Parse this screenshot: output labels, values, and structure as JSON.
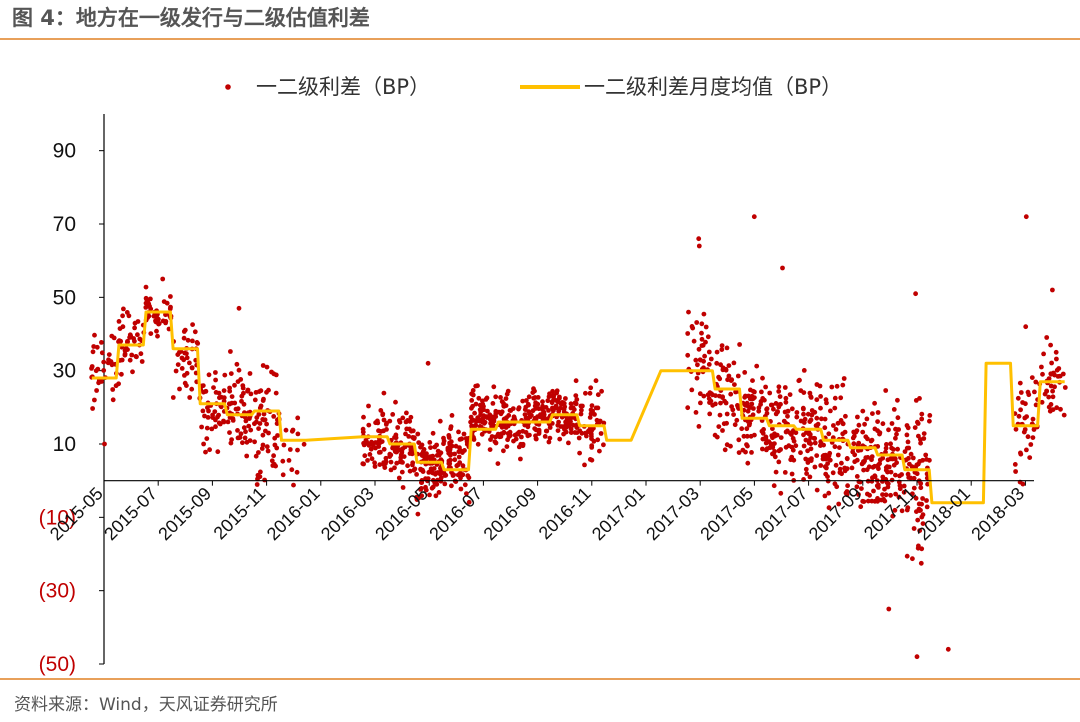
{
  "header": {
    "title": "图 4：地方在一级发行与二级估值利差"
  },
  "footer": {
    "source": "资料来源：Wind，天风证券研究所"
  },
  "colors": {
    "scatter": "#c00000",
    "line": "#ffc000",
    "negative_label": "#c00000",
    "rule": "#e8a05a"
  },
  "chart_data": {
    "type": "scatter",
    "title": "",
    "xlabel": "",
    "ylabel": "",
    "ylim": [
      -50,
      100
    ],
    "y_ticks": [
      {
        "value": 90,
        "label": "90"
      },
      {
        "value": 70,
        "label": "70"
      },
      {
        "value": 50,
        "label": "50"
      },
      {
        "value": 30,
        "label": "30"
      },
      {
        "value": 10,
        "label": "10"
      },
      {
        "value": -10,
        "label": "(10)"
      },
      {
        "value": -30,
        "label": "(30)"
      },
      {
        "value": -50,
        "label": "(50)"
      }
    ],
    "x_ticks": [
      "2015-05",
      "2015-07",
      "2015-09",
      "2015-11",
      "2016-01",
      "2016-03",
      "2016-05",
      "2016-07",
      "2016-09",
      "2016-11",
      "2017-01",
      "2017-03",
      "2017-05",
      "2017-07",
      "2017-09",
      "2017-11",
      "2018-01",
      "2018-03"
    ],
    "legend": [
      {
        "name": "一二级利差（BP）",
        "marker": "dot"
      },
      {
        "name": "一二级利差月度均值（BP）",
        "marker": "line"
      }
    ],
    "legend_position": "top",
    "series": [
      {
        "name": "一二级利差月度均值（BP）",
        "type": "line",
        "x": [
          "2015-05",
          "2015-06",
          "2015-07",
          "2015-08",
          "2015-09",
          "2015-10",
          "2015-11",
          "2015-12",
          "2016-03",
          "2016-04",
          "2016-05",
          "2016-06",
          "2016-07",
          "2016-08",
          "2016-09",
          "2016-10",
          "2016-11",
          "2016-12",
          "2017-02",
          "2017-03",
          "2017-04",
          "2017-05",
          "2017-06",
          "2017-07",
          "2017-08",
          "2017-09",
          "2017-10",
          "2017-11",
          "2017-12",
          "2018-01",
          "2018-02",
          "2018-03",
          "2018-04"
        ],
        "values": [
          28,
          37,
          46,
          36,
          21,
          18,
          19,
          11,
          12,
          10,
          5,
          3,
          14,
          16,
          16,
          18,
          15,
          11,
          30,
          30,
          25,
          17,
          15,
          14,
          11,
          9,
          7,
          3,
          -6,
          -6,
          32,
          15,
          27
        ]
      },
      {
        "name": "一二级利差（BP）",
        "type": "scatter",
        "monthly_clusters": [
          {
            "month": "2015-05",
            "center": 30,
            "spread": 8,
            "count": 35
          },
          {
            "month": "2015-06",
            "center": 38,
            "spread": 8,
            "count": 45
          },
          {
            "month": "2015-07",
            "center": 46,
            "spread": 6,
            "count": 45
          },
          {
            "month": "2015-08",
            "center": 34,
            "spread": 9,
            "count": 40
          },
          {
            "month": "2015-09",
            "center": 20,
            "spread": 10,
            "count": 50
          },
          {
            "month": "2015-10",
            "center": 19,
            "spread": 12,
            "count": 60
          },
          {
            "month": "2015-11",
            "center": 15,
            "spread": 14,
            "count": 60
          },
          {
            "month": "2015-12",
            "center": 12,
            "spread": 10,
            "count": 15
          },
          {
            "month": "2016-03",
            "center": 12,
            "spread": 8,
            "count": 60
          },
          {
            "month": "2016-04",
            "center": 10,
            "spread": 9,
            "count": 80
          },
          {
            "month": "2016-05",
            "center": 3,
            "spread": 9,
            "count": 90
          },
          {
            "month": "2016-06",
            "center": 5,
            "spread": 9,
            "count": 70
          },
          {
            "month": "2016-07",
            "center": 17,
            "spread": 7,
            "count": 80
          },
          {
            "month": "2016-08",
            "center": 15,
            "spread": 7,
            "count": 70
          },
          {
            "month": "2016-09",
            "center": 18,
            "spread": 6,
            "count": 80
          },
          {
            "month": "2016-10",
            "center": 18,
            "spread": 7,
            "count": 80
          },
          {
            "month": "2016-11",
            "center": 16,
            "spread": 9,
            "count": 50
          },
          {
            "month": "2017-03",
            "center": 30,
            "spread": 13,
            "count": 50
          },
          {
            "month": "2017-04",
            "center": 24,
            "spread": 14,
            "count": 60
          },
          {
            "month": "2017-05",
            "center": 17,
            "spread": 13,
            "count": 70
          },
          {
            "month": "2017-06",
            "center": 15,
            "spread": 12,
            "count": 70
          },
          {
            "month": "2017-07",
            "center": 14,
            "spread": 13,
            "count": 70
          },
          {
            "month": "2017-08",
            "center": 9,
            "spread": 13,
            "count": 70
          },
          {
            "month": "2017-09",
            "center": 7,
            "spread": 13,
            "count": 70
          },
          {
            "month": "2017-10",
            "center": 5,
            "spread": 16,
            "count": 80
          },
          {
            "month": "2017-11",
            "center": 2,
            "spread": 20,
            "count": 80
          },
          {
            "month": "2018-03",
            "center": 15,
            "spread": 12,
            "count": 40
          },
          {
            "month": "2018-04",
            "center": 27,
            "spread": 10,
            "count": 40
          }
        ],
        "notable_points": [
          {
            "x": "2015-05",
            "y": 10
          },
          {
            "x": "2015-07",
            "y": 55
          },
          {
            "x": "2015-10",
            "y": 47
          },
          {
            "x": "2016-05",
            "y": 32
          },
          {
            "x": "2017-03",
            "y": 66
          },
          {
            "x": "2017-03",
            "y": 64
          },
          {
            "x": "2017-05",
            "y": 72
          },
          {
            "x": "2017-06",
            "y": 58
          },
          {
            "x": "2017-10",
            "y": -35
          },
          {
            "x": "2017-11",
            "y": -48
          },
          {
            "x": "2017-11",
            "y": 51
          },
          {
            "x": "2018-03",
            "y": 72
          },
          {
            "x": "2018-03",
            "y": 42
          },
          {
            "x": "2018-04",
            "y": 52
          },
          {
            "x": "2017-12",
            "y": -46
          }
        ]
      }
    ]
  }
}
